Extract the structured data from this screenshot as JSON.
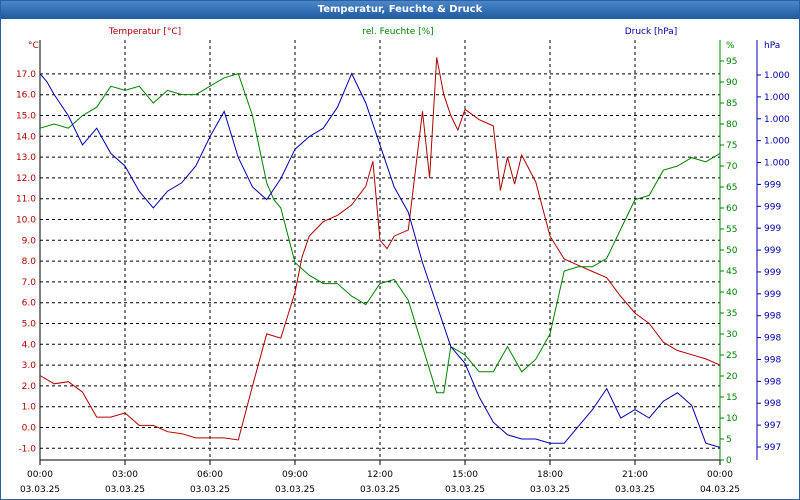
{
  "window": {
    "title": "Temperatur, Feuchte & Druck"
  },
  "colors": {
    "temperature": "#b00000",
    "humidity": "#008000",
    "pressure": "#0000b0",
    "grid": "#000000",
    "title_bar": "#2b5fa0"
  },
  "chart_data": {
    "type": "line",
    "title": "Temperatur, Feuchte & Druck",
    "grid": true,
    "x_ticks": [
      {
        "time": "00:00",
        "date": "03.03.25"
      },
      {
        "time": "03:00",
        "date": "03.03.25"
      },
      {
        "time": "06:00",
        "date": "03.03.25"
      },
      {
        "time": "09:00",
        "date": "03.03.25"
      },
      {
        "time": "12:00",
        "date": "03.03.25"
      },
      {
        "time": "15:00",
        "date": "03.03.25"
      },
      {
        "time": "18:00",
        "date": "03.03.25"
      },
      {
        "time": "21:00",
        "date": "03.03.25"
      },
      {
        "time": "00:00",
        "date": "04.03.25"
      }
    ],
    "xlim_hours": [
      0,
      24
    ],
    "axes": {
      "temperature": {
        "label": "Temperatur [°C]",
        "unit": "°C",
        "range": [
          -1.5,
          17.9
        ],
        "ticks": [
          "17.0",
          "16.0",
          "15.0",
          "14.0",
          "13.0",
          "12.0",
          "11.0",
          "10.0",
          "9.0",
          "8.0",
          "7.0",
          "6.0",
          "5.0",
          "4.0",
          "3.0",
          "2.0",
          "1.0",
          "0.0",
          "-1.0"
        ]
      },
      "humidity": {
        "label": "rel. Feuchte [%]",
        "unit": "%",
        "range": [
          0,
          100
        ],
        "ticks": [
          "95",
          "90",
          "85",
          "80",
          "75",
          "70",
          "65",
          "60",
          "55",
          "50",
          "45",
          "40",
          "35",
          "30",
          "25",
          "20",
          "15",
          "10",
          "5",
          "0"
        ]
      },
      "pressure": {
        "label": "Druck [hPa]",
        "unit": "hPa",
        "ticks": [
          "1.000",
          "1.000",
          "1.000",
          "1.000",
          "1.000",
          "999",
          "999",
          "999",
          "999",
          "999",
          "999",
          "998",
          "998",
          "998",
          "998",
          "998",
          "997",
          "997"
        ]
      }
    },
    "series": [
      {
        "name": "Temperatur [°C]",
        "axis": "temperature",
        "x": [
          0,
          0.5,
          1,
          1.5,
          2,
          2.5,
          3,
          3.5,
          4,
          4.5,
          5,
          5.5,
          6,
          6.5,
          7,
          7.5,
          8,
          8.5,
          9,
          9.25,
          9.5,
          10,
          10.5,
          11,
          11.5,
          11.75,
          12,
          12.25,
          12.5,
          13,
          13.5,
          13.75,
          14,
          14.25,
          14.5,
          14.75,
          15,
          15.5,
          16,
          16.25,
          16.5,
          16.75,
          17,
          17.5,
          18,
          18.5,
          19,
          19.5,
          20,
          20.5,
          21,
          21.5,
          22,
          22.5,
          23,
          23.5,
          24
        ],
        "y": [
          2.5,
          2.1,
          2.2,
          1.7,
          0.5,
          0.5,
          0.7,
          0.1,
          0.1,
          -0.2,
          -0.3,
          -0.5,
          -0.5,
          -0.5,
          -0.6,
          2.0,
          4.5,
          4.3,
          6.5,
          8.2,
          9.2,
          9.9,
          10.2,
          10.7,
          11.6,
          12.8,
          9.0,
          8.6,
          9.2,
          9.5,
          15.2,
          12.0,
          17.8,
          16.0,
          15.0,
          14.3,
          15.3,
          14.8,
          14.5,
          11.4,
          13.0,
          11.7,
          13.1,
          11.8,
          9.2,
          8.1,
          7.8,
          7.5,
          7.2,
          6.3,
          5.5,
          5.0,
          4.1,
          3.7,
          3.5,
          3.3,
          3.0
        ]
      },
      {
        "name": "rel. Feuchte [%]",
        "axis": "humidity",
        "x": [
          0,
          0.5,
          1,
          1.5,
          2,
          2.5,
          3,
          3.5,
          4,
          4.5,
          5,
          5.5,
          6,
          6.5,
          7,
          7.5,
          8,
          8.25,
          8.5,
          9,
          9.5,
          10,
          10.5,
          11,
          11.5,
          12,
          12.5,
          13,
          13.5,
          14,
          14.25,
          14.5,
          15,
          15.5,
          16,
          16.5,
          17,
          17.5,
          18,
          18.5,
          19,
          19.5,
          20,
          20.5,
          21,
          21.5,
          22,
          22.5,
          23,
          23.5,
          24
        ],
        "y": [
          79,
          80,
          79,
          82,
          84,
          89,
          88,
          89,
          85,
          88,
          87,
          87,
          89,
          91,
          92,
          82,
          66,
          62,
          60,
          47,
          44,
          42,
          42,
          39,
          37,
          42,
          43,
          38,
          27,
          16,
          16,
          27,
          25,
          21,
          21,
          27,
          21,
          24,
          30,
          45,
          46,
          46,
          48,
          55,
          62,
          63,
          69,
          70,
          72,
          71,
          73
        ]
      },
      {
        "name": "Druck [hPa]",
        "axis": "pressure",
        "x": [
          0,
          0.25,
          0.5,
          1,
          1.5,
          2,
          2.5,
          3,
          3.5,
          4,
          4.5,
          5,
          5.5,
          6,
          6.5,
          7,
          7.5,
          8,
          8.5,
          9,
          9.5,
          10,
          10.5,
          11,
          11.5,
          12,
          12.5,
          13,
          13.5,
          14,
          14.5,
          15,
          15.5,
          16,
          16.5,
          17,
          17.5,
          18,
          18.5,
          19,
          19.5,
          20,
          20.5,
          21,
          21.5,
          22,
          22.5,
          23,
          23.5,
          24
        ],
        "y": [
          92,
          90,
          87,
          82,
          75,
          79,
          73,
          70,
          64,
          60,
          64,
          66,
          70,
          77,
          83,
          72,
          65,
          62,
          67,
          74,
          77,
          79,
          84,
          92,
          85,
          75,
          65,
          59,
          47,
          37,
          27,
          23,
          15,
          9,
          6,
          5,
          5,
          4,
          4,
          8,
          12,
          17,
          10,
          12,
          10,
          14,
          16,
          13,
          4,
          3
        ]
      }
    ]
  }
}
